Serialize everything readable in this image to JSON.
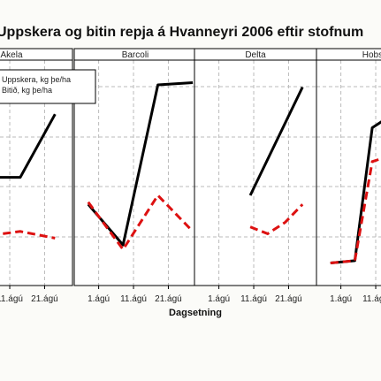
{
  "chart_data": {
    "type": "line",
    "title": "Uppskera og bitin repja á Hvanneyri 2006 eftir stofnum",
    "xlabel": "Dagsetning",
    "ylabel": "",
    "x_tick_labels": [
      "1.ágú",
      "11.ágú",
      "21.ágú"
    ],
    "x_ticks": [
      1,
      11,
      21
    ],
    "xlim": [
      -6,
      29
    ],
    "ylim": [
      0,
      100
    ],
    "grid": true,
    "legend": {
      "placement": "top-left",
      "entries": [
        {
          "label": "Uppskera, kg þe/ha",
          "style": "solid",
          "color": "#000000"
        },
        {
          "label": "Bitið, kg þe/ha",
          "style": "dashed",
          "color": "#dd1111"
        }
      ]
    },
    "panels": [
      {
        "name": "Akela",
        "series": [
          {
            "name": "Uppskera, kg þe/ha",
            "x": [
              0,
              4,
              14,
              24
            ],
            "y": [
              18,
              48,
              48,
              76
            ]
          },
          {
            "name": "Bitið, kg þe/ha",
            "x": [
              0,
              4,
              14,
              24
            ],
            "y": [
              28,
              22,
              24,
              21
            ]
          }
        ]
      },
      {
        "name": "Barcoli",
        "series": [
          {
            "name": "Uppskera, kg þe/ha",
            "x": [
              -2,
              8,
              18,
              28
            ],
            "y": [
              36,
              18,
              89,
              90
            ]
          },
          {
            "name": "Bitið, kg þe/ha",
            "x": [
              -2,
              8,
              18,
              28
            ],
            "y": [
              37,
              16,
              40,
              24
            ]
          }
        ]
      },
      {
        "name": "Delta",
        "series": [
          {
            "name": "Uppskera, kg þe/ha",
            "x": [
              10,
              25
            ],
            "y": [
              40,
              88
            ]
          },
          {
            "name": "Bitið, kg þe/ha",
            "x": [
              10,
              15,
              20,
              25
            ],
            "y": [
              26,
              23,
              28,
              36
            ]
          }
        ]
      },
      {
        "name": "Hobson",
        "series": [
          {
            "name": "Uppskera, kg þe/ha",
            "x": [
              -2,
              5,
              10,
              20
            ],
            "y": [
              10,
              11,
              70,
              80
            ]
          },
          {
            "name": "Bitið, kg þe/ha",
            "x": [
              -2,
              5,
              10,
              20
            ],
            "y": [
              10,
              11,
              55,
              60
            ]
          }
        ]
      }
    ]
  }
}
